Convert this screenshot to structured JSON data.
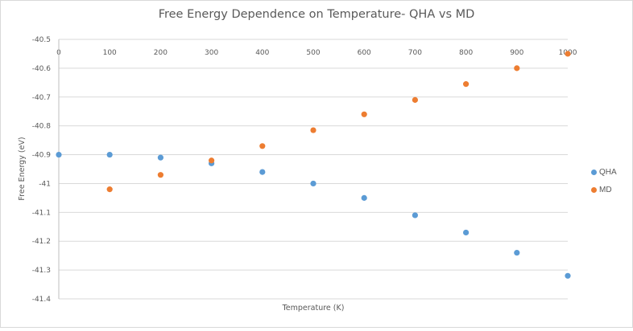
{
  "chart_data": {
    "type": "scatter",
    "title": "Free Energy Dependence on Temperature- QHA vs MD",
    "xlabel": "Temperature  (K)",
    "ylabel": "Free Energy  (eV)",
    "xlim": [
      0,
      1000
    ],
    "ylim": [
      -41.4,
      -40.5
    ],
    "x_ticks": [
      "0",
      "100",
      "200",
      "300",
      "400",
      "500",
      "600",
      "700",
      "800",
      "900",
      "1000"
    ],
    "y_ticks": [
      "-40.5",
      "-40.6",
      "-40.7",
      "-40.8",
      "-40.9",
      "-41",
      "-41.1",
      "-41.2",
      "-41.3",
      "-41.4"
    ],
    "grid": true,
    "legend_position": "right",
    "series": [
      {
        "name": "QHA",
        "color": "#5B9BD5",
        "points": [
          [
            0,
            -40.9
          ],
          [
            100,
            -40.9
          ],
          [
            200,
            -40.91
          ],
          [
            300,
            -40.93
          ],
          [
            400,
            -40.96
          ],
          [
            500,
            -41.0
          ],
          [
            600,
            -41.05
          ],
          [
            700,
            -41.11
          ],
          [
            800,
            -41.17
          ],
          [
            900,
            -41.24
          ],
          [
            1000,
            -41.32
          ]
        ]
      },
      {
        "name": "MD",
        "color": "#ED7D31",
        "points": [
          [
            100,
            -41.02
          ],
          [
            200,
            -40.97
          ],
          [
            300,
            -40.92
          ],
          [
            400,
            -40.87
          ],
          [
            500,
            -40.815
          ],
          [
            600,
            -40.76
          ],
          [
            700,
            -40.71
          ],
          [
            800,
            -40.655
          ],
          [
            900,
            -40.6
          ],
          [
            1000,
            -40.55
          ]
        ]
      }
    ]
  }
}
